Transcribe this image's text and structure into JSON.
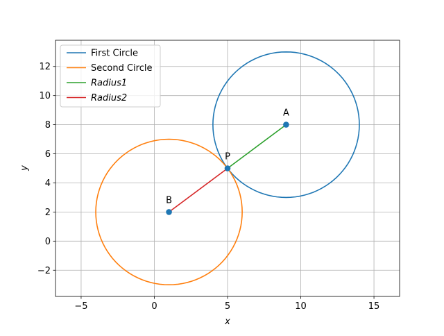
{
  "chart_data": {
    "type": "line",
    "title": "",
    "xlabel": "x",
    "ylabel": "y",
    "xlim": [
      -6.75,
      16.75
    ],
    "ylim": [
      -3.8,
      13.8
    ],
    "grid": true,
    "xticks": [
      -5,
      0,
      5,
      10,
      15
    ],
    "yticks": [
      -2,
      0,
      2,
      4,
      6,
      8,
      10,
      12
    ],
    "xtick_labels": [
      "−5",
      "0",
      "5",
      "10",
      "15"
    ],
    "ytick_labels": [
      "−2",
      "0",
      "2",
      "4",
      "6",
      "8",
      "10",
      "12"
    ],
    "legend_position": "top-left",
    "series": [
      {
        "name": "First Circle",
        "kind": "circle",
        "center": [
          9,
          8
        ],
        "radius": 5,
        "color": "#1f77b4"
      },
      {
        "name": "Second Circle",
        "kind": "circle",
        "center": [
          1,
          2
        ],
        "radius": 5,
        "color": "#ff7f0e"
      },
      {
        "name": "Radius1",
        "kind": "segment",
        "x": [
          9,
          5
        ],
        "y": [
          8,
          5
        ],
        "color": "#2ca02c"
      },
      {
        "name": "Radius2",
        "kind": "segment",
        "x": [
          1,
          5
        ],
        "y": [
          2,
          5
        ],
        "color": "#d62728"
      }
    ],
    "legend_labels": [
      "First Circle",
      "Second Circle",
      "Radius1",
      "Radius2"
    ],
    "points": [
      {
        "label": "A",
        "x": 9,
        "y": 8,
        "color": "#1f77b4"
      },
      {
        "label": "B",
        "x": 1,
        "y": 2,
        "color": "#1f77b4"
      },
      {
        "label": "P",
        "x": 5,
        "y": 5,
        "color": "#1f77b4"
      }
    ]
  }
}
